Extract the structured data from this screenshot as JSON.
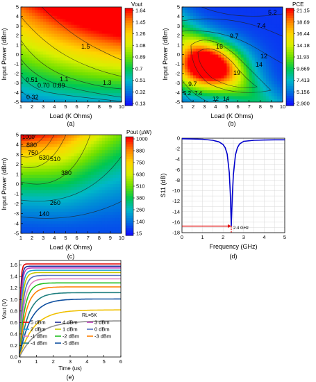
{
  "chart_data": [
    {
      "type": "heatmap",
      "panel": "(a)",
      "xlabel": "Load (K Ohms)",
      "ylabel": "Input Power (dBm)",
      "xlim": [
        1,
        10
      ],
      "ylim": [
        -5,
        5
      ],
      "x_ticks": [
        "1",
        "2",
        "3",
        "4",
        "5",
        "6",
        "7",
        "8",
        "9",
        "10"
      ],
      "y_ticks": [
        "-5",
        "-4",
        "-3",
        "-2",
        "-1",
        "0",
        "1",
        "2",
        "3",
        "4",
        "5"
      ],
      "colorbar_title": "Vout",
      "colorbar_labels": [
        "1.64",
        "1.45",
        "1.26",
        "1.08",
        "0.89",
        "0.7",
        "0.51",
        "0.32",
        "0.13"
      ],
      "colorbar_colors": [
        "#ff0000",
        "#ff7f00",
        "#ffd400",
        "#d8f000",
        "#6ee000",
        "#00c850",
        "#00b8c8",
        "#0070e0",
        "#1010ff"
      ],
      "contour_labels": [
        "1.5",
        "1.1",
        "1.3",
        "0.51",
        "0.70",
        "0.89",
        "0.32"
      ],
      "min": 0.13,
      "max": 1.64
    },
    {
      "type": "heatmap",
      "panel": "(b)",
      "xlabel": "Load (K Ohms)",
      "ylabel": "Input Power (dBm)",
      "xlim": [
        1,
        10
      ],
      "ylim": [
        -5,
        5
      ],
      "x_ticks": [
        "1",
        "2",
        "3",
        "4",
        "5",
        "6",
        "7",
        "8",
        "9",
        "10"
      ],
      "y_ticks": [
        "-5",
        "-4",
        "-3",
        "-2",
        "-1",
        "0",
        "1",
        "2",
        "3",
        "4",
        "5"
      ],
      "colorbar_title": "PCE",
      "colorbar_labels": [
        "21.15",
        "18.69",
        "16.44",
        "14.18",
        "11.93",
        "9.669",
        "7.413",
        "5.156",
        "2.900"
      ],
      "colorbar_colors": [
        "#ff0000",
        "#ff7f00",
        "#ffd400",
        "#d8f000",
        "#6ee000",
        "#00c850",
        "#00b8c8",
        "#0070e0",
        "#1010ff"
      ],
      "contour_labels": [
        "5.2",
        "7.4",
        "9.7",
        "16",
        "12",
        "14",
        "19",
        "9.7",
        "5.2",
        "7.4",
        "12",
        "14"
      ],
      "min": 2.9,
      "max": 21.15
    },
    {
      "type": "heatmap",
      "panel": "(c)",
      "xlabel": "Load (K Ohms)",
      "ylabel": "Input Power (dBm)",
      "xlim": [
        1,
        10
      ],
      "ylim": [
        -5,
        5
      ],
      "x_ticks": [
        "1",
        "2",
        "3",
        "4",
        "5",
        "6",
        "7",
        "8",
        "9",
        "10"
      ],
      "y_ticks": [
        "-5",
        "-4",
        "-3",
        "-2",
        "-1",
        "0",
        "1",
        "2",
        "3",
        "4",
        "5"
      ],
      "colorbar_title": "Pout (µW)",
      "colorbar_labels": [
        "1000",
        "880",
        "750",
        "630",
        "510",
        "380",
        "260",
        "140",
        "15"
      ],
      "colorbar_colors": [
        "#ff0000",
        "#ff7f00",
        "#ffd400",
        "#d8f000",
        "#6ee000",
        "#00c850",
        "#00b8c8",
        "#0070e0",
        "#1010ff"
      ],
      "contour_labels": [
        "1000",
        "880",
        "750",
        "630",
        "510",
        "380",
        "260",
        "140"
      ],
      "min": 15,
      "max": 1000
    },
    {
      "type": "line",
      "panel": "(d)",
      "xlabel": "Frequency (GHz)",
      "ylabel": "S11 (dB)",
      "xlim": [
        0,
        5
      ],
      "ylim": [
        -18,
        0
      ],
      "x_ticks": [
        "0",
        "1",
        "2",
        "3",
        "4",
        "5"
      ],
      "y_ticks": [
        "0",
        "-2",
        "-4",
        "-6",
        "-8",
        "-10",
        "-12",
        "-14",
        "-16",
        "-18"
      ],
      "annotation": "2.4 GHz",
      "series": [
        {
          "color": "#0000cc",
          "x": [
            0,
            0.5,
            1.0,
            1.5,
            1.8,
            2.0,
            2.1,
            2.2,
            2.3,
            2.35,
            2.4,
            2.45,
            2.5,
            2.6,
            2.7,
            2.8,
            3.0,
            3.5,
            4.0,
            4.5,
            5.0
          ],
          "y": [
            -0.1,
            -0.15,
            -0.2,
            -0.4,
            -0.7,
            -1.2,
            -1.8,
            -3.0,
            -6.5,
            -10.5,
            -16.8,
            -11.0,
            -7.0,
            -3.2,
            -1.8,
            -1.1,
            -0.6,
            -0.4,
            -0.35,
            -0.3,
            -0.3
          ]
        }
      ]
    },
    {
      "type": "line",
      "panel": "(e)",
      "xlabel": "Time (us)",
      "ylabel": "Vout (V)",
      "xlim": [
        0,
        6
      ],
      "ylim": [
        0,
        1.6
      ],
      "x_ticks": [
        "0",
        "1",
        "2",
        "3",
        "4",
        "5",
        "6"
      ],
      "y_ticks": [
        "0.0",
        "0.2",
        "0.4",
        "0.6",
        "0.8",
        "1.0",
        "1.2",
        "1.4",
        "1.6"
      ],
      "annotation": "RL=5K",
      "series": [
        {
          "name": "5 dBm",
          "color": "#e00000",
          "final": 1.62,
          "tau": 0.06
        },
        {
          "name": "4 dBm",
          "color": "#1a2a9a",
          "final": 1.58,
          "tau": 0.08
        },
        {
          "name": "3 dBm",
          "color": "#c040c0",
          "final": 1.55,
          "tau": 0.1
        },
        {
          "name": "2 dBm",
          "color": "#20a0d0",
          "final": 1.51,
          "tau": 0.13
        },
        {
          "name": "1 dBm",
          "color": "#c8c800",
          "final": 1.47,
          "tau": 0.16
        },
        {
          "name": "0 dBm",
          "color": "#5070c0",
          "final": 1.42,
          "tau": 0.2
        },
        {
          "name": "-1 dBm",
          "color": "#e080c0",
          "final": 1.36,
          "tau": 0.25
        },
        {
          "name": "-2 dBm",
          "color": "#20c020",
          "final": 1.29,
          "tau": 0.3
        },
        {
          "name": "-3 dBm",
          "color": "#ff8000",
          "final": 1.22,
          "tau": 0.38
        },
        {
          "name": "-4 dBm",
          "color": "#208080",
          "final": 1.12,
          "tau": 0.5
        },
        {
          "name": "-5 dBm",
          "color": "#1050a0",
          "final": 1.01,
          "tau": 0.65
        },
        {
          "name": "",
          "color": "#f0c000",
          "final": 0.82,
          "tau": 0.85
        },
        {
          "name": "",
          "color": "#909090",
          "final": 0.63,
          "tau": 1.05
        }
      ]
    }
  ]
}
